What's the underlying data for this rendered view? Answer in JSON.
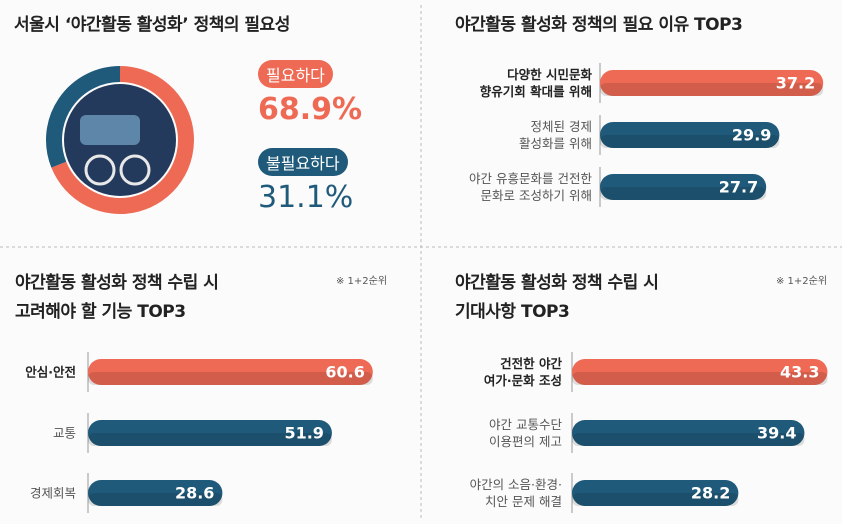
{
  "chart_data": [
    {
      "type": "pie",
      "title": "서울시 ‘야간활동 활성화’ 정책의 필요성",
      "categories": [
        "필요하다",
        "불필요하다"
      ],
      "values": [
        68.9,
        31.1
      ],
      "value_labels": [
        "68.9%",
        "31.1%"
      ],
      "colors": [
        "#ee6a55",
        "#1f5a7a"
      ]
    },
    {
      "type": "bar",
      "title": [
        "야간활동 활성화 정책의 필요 이유 TOP3"
      ],
      "categories": [
        "다양한 시민문화\n향유기회 확대를 위해",
        "정체된 경제\n활성화를 위해",
        "야간 유흥문화를 건전한\n문화로 조성하기 위해"
      ],
      "values": [
        37.2,
        29.9,
        27.7
      ],
      "colors": [
        "#ee6a55",
        "#1f5a7a",
        "#1f5a7a"
      ]
    },
    {
      "type": "bar",
      "title": [
        "야간활동 활성화 정책 수립 시",
        "고려해야 할 기능 TOP3"
      ],
      "note": "※ 1+2순위",
      "categories": [
        "안심·안전",
        "교통",
        "경제회복"
      ],
      "values": [
        60.6,
        51.9,
        28.6
      ],
      "colors": [
        "#ee6a55",
        "#1f5a7a",
        "#1f5a7a"
      ]
    },
    {
      "type": "bar",
      "title": [
        "야간활동 활성화 정책 수립 시",
        "기대사항 TOP3"
      ],
      "note": "※ 1+2순위",
      "categories": [
        "건전한 야간\n여가·문화 조성",
        "야간 교통수단\n이용편의 제고",
        "야간의 소음·환경·\n치안 문제 해결"
      ],
      "values": [
        43.3,
        39.4,
        28.2
      ],
      "colors": [
        "#ee6a55",
        "#1f5a7a",
        "#1f5a7a"
      ]
    }
  ]
}
